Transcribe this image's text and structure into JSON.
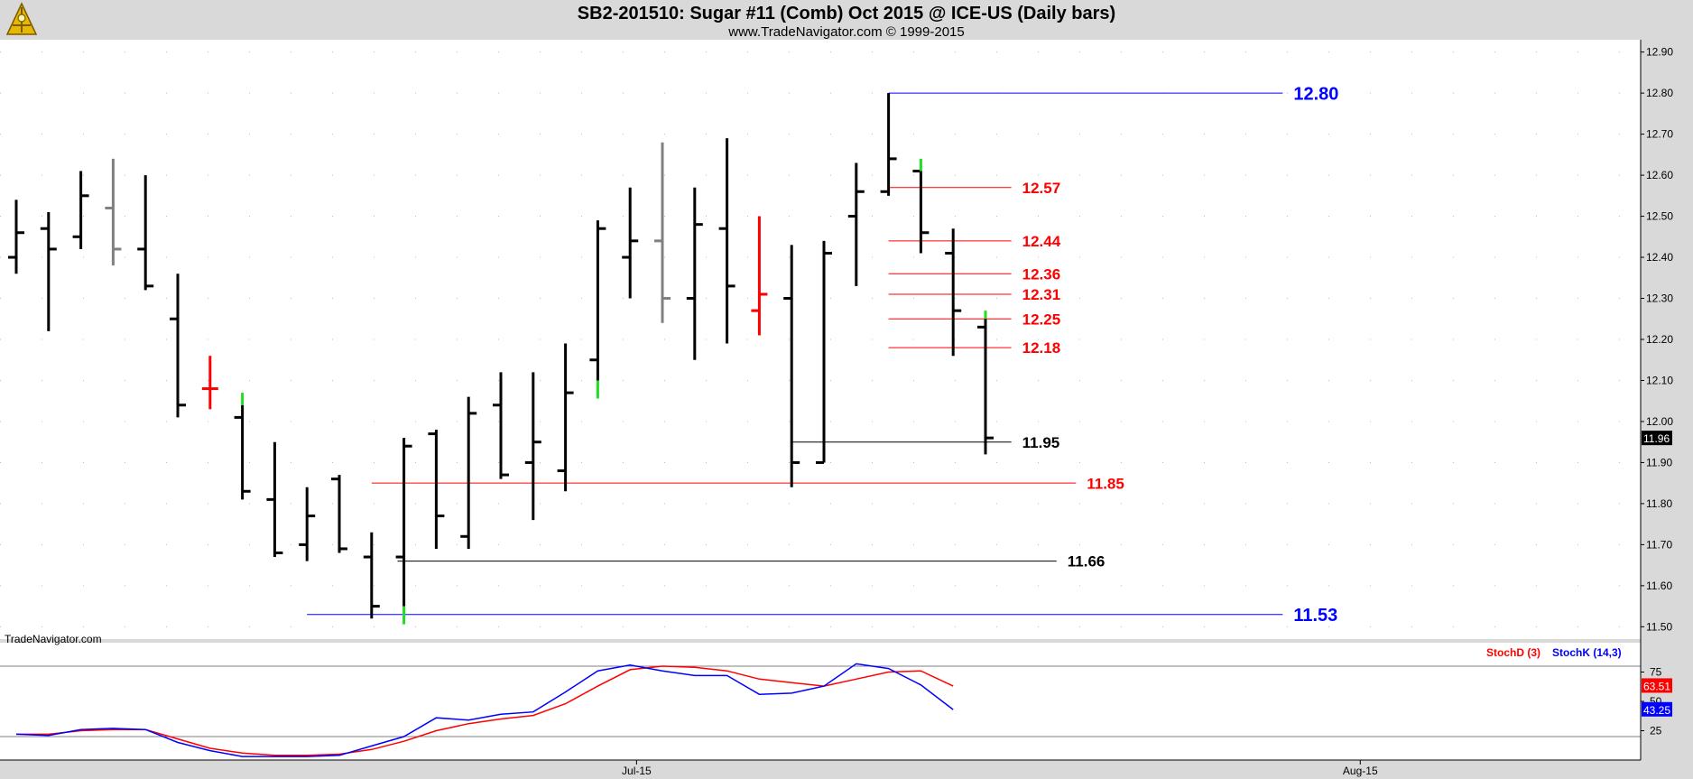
{
  "title": "SB2-201510:  Sugar #11 (Comb) Oct 2015 @ ICE-US  (Daily bars)",
  "subtitle": "www.TradeNavigator.com © 1999-2015",
  "watermark": "TradeNavigator.com",
  "colors": {
    "up_bar": "#000000",
    "doji_bar": "#808080",
    "red_bar": "#ff0000",
    "green_tick": "#22dd22",
    "support_black": "#000000",
    "level_red": "#ff0000",
    "level_blue": "#0000ff",
    "stoch_d": "#ff0000",
    "stoch_k": "#0000ff"
  },
  "chart_data": [
    {
      "type": "ohlc",
      "title": "SB2-201510:  Sugar #11 (Comb) Oct 2015 @ ICE-US  (Daily bars)",
      "ylim": [
        11.47,
        12.93
      ],
      "y_ticks": [
        "12.90",
        "12.80",
        "12.70",
        "12.60",
        "12.50",
        "12.40",
        "12.30",
        "12.20",
        "12.10",
        "12.00",
        "11.90",
        "11.80",
        "11.70",
        "11.60",
        "11.50"
      ],
      "x_ticks": [
        {
          "label": "Jul-15",
          "index": 19.2
        },
        {
          "label": "Aug-15",
          "index": 41.6
        }
      ],
      "last_price": "11.96",
      "bars": [
        {
          "o": 12.4,
          "h": 12.54,
          "l": 12.36,
          "c": 12.46,
          "color": "up_bar"
        },
        {
          "o": 12.47,
          "h": 12.51,
          "l": 12.22,
          "c": 12.42,
          "color": "up_bar"
        },
        {
          "o": 12.45,
          "h": 12.61,
          "l": 12.42,
          "c": 12.55,
          "color": "up_bar"
        },
        {
          "o": 12.52,
          "h": 12.64,
          "l": 12.38,
          "c": 12.42,
          "color": "doji_bar"
        },
        {
          "o": 12.42,
          "h": 12.6,
          "l": 12.32,
          "c": 12.33,
          "color": "up_bar"
        },
        {
          "o": 12.25,
          "h": 12.36,
          "l": 12.01,
          "c": 12.04,
          "color": "up_bar"
        },
        {
          "o": 12.08,
          "h": 12.16,
          "l": 12.03,
          "c": 12.08,
          "color": "red_bar"
        },
        {
          "o": 12.01,
          "h": 12.04,
          "l": 11.81,
          "c": 11.83,
          "color": "up_bar",
          "green_top": 12.07
        },
        {
          "o": 11.81,
          "h": 11.95,
          "l": 11.67,
          "c": 11.68,
          "color": "up_bar"
        },
        {
          "o": 11.7,
          "h": 11.84,
          "l": 11.66,
          "c": 11.77,
          "color": "up_bar"
        },
        {
          "o": 11.86,
          "h": 11.87,
          "l": 11.68,
          "c": 11.69,
          "color": "up_bar"
        },
        {
          "o": 11.67,
          "h": 11.73,
          "l": 11.52,
          "c": 11.55,
          "color": "up_bar"
        },
        {
          "o": 11.67,
          "h": 11.96,
          "l": 11.55,
          "c": 11.94,
          "color": "up_bar",
          "green_bottom": 11.55
        },
        {
          "o": 11.97,
          "h": 11.98,
          "l": 11.69,
          "c": 11.77,
          "color": "up_bar"
        },
        {
          "o": 11.72,
          "h": 12.06,
          "l": 11.69,
          "c": 12.02,
          "color": "up_bar"
        },
        {
          "o": 12.04,
          "h": 12.12,
          "l": 11.86,
          "c": 11.87,
          "color": "up_bar"
        },
        {
          "o": 11.9,
          "h": 12.12,
          "l": 11.76,
          "c": 11.95,
          "color": "up_bar"
        },
        {
          "o": 11.88,
          "h": 12.19,
          "l": 11.83,
          "c": 12.07,
          "color": "up_bar"
        },
        {
          "o": 12.15,
          "h": 12.49,
          "l": 12.1,
          "c": 12.47,
          "color": "up_bar",
          "green_bottom": 12.07
        },
        {
          "o": 12.4,
          "h": 12.57,
          "l": 12.3,
          "c": 12.44,
          "color": "up_bar"
        },
        {
          "o": 12.44,
          "h": 12.68,
          "l": 12.24,
          "c": 12.3,
          "color": "doji_bar"
        },
        {
          "o": 12.3,
          "h": 12.57,
          "l": 12.15,
          "c": 12.48,
          "color": "up_bar"
        },
        {
          "o": 12.47,
          "h": 12.69,
          "l": 12.19,
          "c": 12.33,
          "color": "up_bar"
        },
        {
          "o": 12.27,
          "h": 12.5,
          "l": 12.21,
          "c": 12.31,
          "color": "red_bar"
        },
        {
          "o": 12.3,
          "h": 12.43,
          "l": 11.84,
          "c": 11.9,
          "color": "up_bar"
        },
        {
          "o": 11.9,
          "h": 12.44,
          "l": 11.9,
          "c": 12.41,
          "color": "up_bar"
        },
        {
          "o": 12.5,
          "h": 12.63,
          "l": 12.33,
          "c": 12.56,
          "color": "up_bar"
        },
        {
          "o": 12.56,
          "h": 12.8,
          "l": 12.55,
          "c": 12.64,
          "color": "up_bar"
        },
        {
          "o": 12.61,
          "h": 12.61,
          "l": 12.41,
          "c": 12.46,
          "color": "up_bar",
          "green_top": 12.64
        },
        {
          "o": 12.41,
          "h": 12.47,
          "l": 12.16,
          "c": 12.27,
          "color": "up_bar"
        },
        {
          "o": 12.23,
          "h": 12.25,
          "l": 11.92,
          "c": 11.96,
          "color": "up_bar",
          "green_top": 12.27
        }
      ],
      "levels": [
        {
          "label": "12.80",
          "value": 12.8,
          "from": 27,
          "to": 39.2,
          "color": "level_blue",
          "size": "large"
        },
        {
          "label": "12.57",
          "value": 12.57,
          "from": 27,
          "to": 30.8,
          "color": "level_red",
          "size": "medium"
        },
        {
          "label": "12.44",
          "value": 12.44,
          "from": 27,
          "to": 30.8,
          "color": "level_red",
          "size": "medium"
        },
        {
          "label": "12.36",
          "value": 12.36,
          "from": 27,
          "to": 30.8,
          "color": "level_red",
          "size": "medium"
        },
        {
          "label": "12.31",
          "value": 12.31,
          "from": 27,
          "to": 30.8,
          "color": "level_red",
          "size": "medium"
        },
        {
          "label": "12.25",
          "value": 12.25,
          "from": 27,
          "to": 30.8,
          "color": "level_red",
          "size": "medium"
        },
        {
          "label": "12.18",
          "value": 12.18,
          "from": 27,
          "to": 30.8,
          "color": "level_red",
          "size": "medium"
        },
        {
          "label": "11.95",
          "value": 11.95,
          "from": 24,
          "to": 30.8,
          "color": "support_black",
          "size": "medium"
        },
        {
          "label": "11.85",
          "value": 11.85,
          "from": 11,
          "to": 32.8,
          "color": "level_red",
          "size": "medium"
        },
        {
          "label": "11.66",
          "value": 11.66,
          "from": 11.8,
          "to": 32.2,
          "color": "support_black",
          "size": "medium"
        },
        {
          "label": "11.53",
          "value": 11.53,
          "from": 9,
          "to": 39.2,
          "color": "level_blue",
          "size": "large"
        }
      ]
    },
    {
      "type": "line",
      "title": "",
      "legend": [
        "StochD (3)",
        "StochK (14,3)"
      ],
      "ylim": [
        0,
        100
      ],
      "y_ticks": [
        "75",
        "50",
        "25"
      ],
      "ref_lines": [
        80,
        20
      ],
      "last_d": "63.51",
      "last_k": "43.25",
      "series": [
        {
          "name": "StochD (3)",
          "color": "stoch_d",
          "values": [
            22,
            22,
            25,
            26,
            26,
            18,
            10,
            6,
            4,
            4,
            5,
            9,
            16,
            25,
            31,
            35,
            38,
            48,
            63,
            77,
            80,
            79,
            76,
            69,
            66,
            63,
            69,
            75,
            76,
            63
          ]
        },
        {
          "name": "StochK (14,3)",
          "color": "stoch_k",
          "values": [
            22,
            21,
            26,
            27,
            26,
            15,
            8,
            3,
            3,
            3,
            4,
            12,
            20,
            36,
            34,
            39,
            41,
            58,
            76,
            81,
            76,
            72,
            72,
            56,
            57,
            63,
            82,
            78,
            64,
            43
          ]
        }
      ]
    }
  ]
}
